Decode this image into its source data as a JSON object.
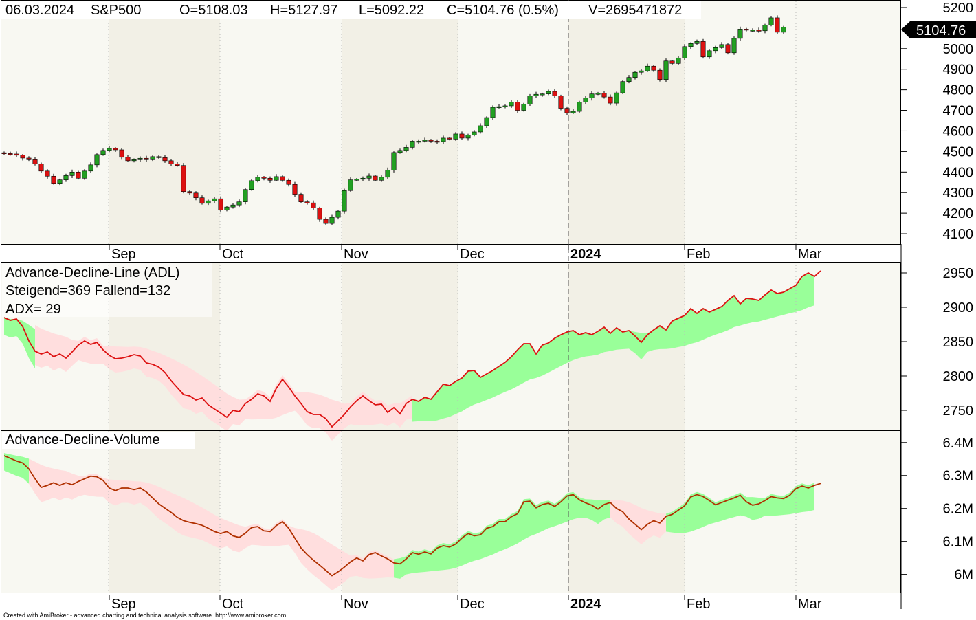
{
  "header": {
    "date": "06.03.2024",
    "symbol": "S&P500",
    "open": "O=5108.03",
    "high": "H=5127.97",
    "low": "L=5092.22",
    "close": "C=5104.76 (0.5%)",
    "volume": "V=2695471872"
  },
  "price_badge": "5104.76",
  "footer": "Created with AmiBroker - advanced charting and technical analysis software. http://www.amibroker.com",
  "months": [
    "Sep",
    "Oct",
    "Nov",
    "Dec",
    "2024",
    "Feb",
    "Mar"
  ],
  "panels": {
    "adl": {
      "title": "Advance-Decline-Line (ADL)",
      "line2": "Steigend=369  Fallend=132",
      "line3": "ADX= 29"
    },
    "adv": {
      "title": "Advance-Decline-Volume"
    }
  },
  "colors": {
    "up": "#22a022",
    "down": "#dd1111",
    "adl_line": "#dd1111",
    "adv_line": "#b03000",
    "cloud_up": "#99ff99",
    "cloud_down": "#ffdede",
    "shade_a": "#f2f0e6",
    "shade_b": "#f8f8f2"
  },
  "chart_data": [
    {
      "type": "candlestick",
      "series_name": "S&P500",
      "ylim": [
        4050,
        5230
      ],
      "yticks": [
        4100,
        4200,
        4300,
        4400,
        4500,
        4600,
        4700,
        4800,
        4900,
        5000,
        5100,
        5200
      ],
      "last_close": 5104.76,
      "close": [
        4490,
        4488,
        4482,
        4468,
        4460,
        4440,
        4405,
        4380,
        4345,
        4362,
        4383,
        4400,
        4370,
        4405,
        4435,
        4485,
        4505,
        4515,
        4508,
        4472,
        4455,
        4460,
        4467,
        4460,
        4475,
        4470,
        4455,
        4440,
        4432,
        4305,
        4298,
        4275,
        4248,
        4260,
        4270,
        4215,
        4230,
        4240,
        4255,
        4315,
        4358,
        4375,
        4370,
        4360,
        4378,
        4360,
        4340,
        4292,
        4255,
        4250,
        4225,
        4170,
        4150,
        4180,
        4210,
        4310,
        4362,
        4365,
        4370,
        4381,
        4360,
        4375,
        4410,
        4495,
        4505,
        4520,
        4550,
        4550,
        4555,
        4550,
        4548,
        4565,
        4560,
        4585,
        4565,
        4580,
        4595,
        4625,
        4665,
        4715,
        4718,
        4722,
        4740,
        4700,
        4730,
        4770,
        4778,
        4780,
        4792,
        4770,
        4710,
        4688,
        4695,
        4740,
        4760,
        4780,
        4783,
        4765,
        4735,
        4785,
        4840,
        4860,
        4885,
        4892,
        4915,
        4895,
        4850,
        4940,
        4928,
        4955,
        5010,
        5025,
        5035,
        4960,
        4990,
        5005,
        5020,
        4980,
        5050,
        5095,
        5090,
        5090,
        5087,
        5115,
        5150,
        5080,
        5104.76
      ]
    },
    {
      "type": "line",
      "series_name": "Advance-Decline-Line (ADL)",
      "ylim": [
        2722,
        2965
      ],
      "yticks": [
        2750,
        2800,
        2850,
        2900,
        2950
      ],
      "values": [
        2885,
        2881,
        2883,
        2872,
        2851,
        2836,
        2832,
        2835,
        2828,
        2832,
        2826,
        2835,
        2845,
        2851,
        2846,
        2849,
        2838,
        2830,
        2825,
        2826,
        2828,
        2831,
        2829,
        2819,
        2817,
        2813,
        2805,
        2793,
        2783,
        2773,
        2771,
        2765,
        2768,
        2758,
        2752,
        2746,
        2740,
        2750,
        2748,
        2760,
        2766,
        2774,
        2771,
        2763,
        2782,
        2795,
        2784,
        2771,
        2760,
        2748,
        2744,
        2744,
        2738,
        2726,
        2735,
        2744,
        2755,
        2764,
        2771,
        2764,
        2758,
        2759,
        2747,
        2754,
        2745,
        2760,
        2766,
        2763,
        2769,
        2766,
        2777,
        2788,
        2786,
        2792,
        2797,
        2807,
        2808,
        2798,
        2803,
        2808,
        2814,
        2820,
        2828,
        2838,
        2847,
        2847,
        2832,
        2845,
        2848,
        2855,
        2860,
        2864,
        2866,
        2860,
        2863,
        2860,
        2865,
        2871,
        2862,
        2870,
        2864,
        2866,
        2858,
        2849,
        2860,
        2867,
        2873,
        2867,
        2880,
        2884,
        2888,
        2898,
        2891,
        2898,
        2893,
        2897,
        2901,
        2910,
        2917,
        2905,
        2913,
        2912,
        2910,
        2918,
        2925,
        2920,
        2922,
        2927,
        2932,
        2945,
        2950,
        2945,
        2953
      ]
    },
    {
      "type": "line",
      "series_name": "Advance-Decline-Volume",
      "ylim": [
        5945000,
        6435000
      ],
      "yticks": [
        6000000,
        6100000,
        6200000,
        6300000,
        6400000
      ],
      "ytick_labels": [
        "6M",
        "6.1M",
        "6.2M",
        "6.3M",
        "6.4M"
      ],
      "values": [
        6360000,
        6352000,
        6344000,
        6338000,
        6320000,
        6290000,
        6264000,
        6270000,
        6278000,
        6270000,
        6278000,
        6272000,
        6282000,
        6290000,
        6298000,
        6296000,
        6285000,
        6262000,
        6254000,
        6262000,
        6262000,
        6257000,
        6262000,
        6250000,
        6232000,
        6214000,
        6201000,
        6188000,
        6173000,
        6163000,
        6158000,
        6154000,
        6149000,
        6140000,
        6130000,
        6124000,
        6130000,
        6117000,
        6112000,
        6125000,
        6142000,
        6145000,
        6132000,
        6130000,
        6148000,
        6160000,
        6140000,
        6110000,
        6080000,
        6060000,
        6043000,
        6028000,
        6012000,
        5996000,
        6008000,
        6022000,
        6038000,
        6050000,
        6041000,
        6060000,
        6066000,
        6056000,
        6047000,
        6035000,
        6032000,
        6047000,
        6066000,
        6061000,
        6068000,
        6062000,
        6080000,
        6087000,
        6083000,
        6092000,
        6110000,
        6124000,
        6117000,
        6120000,
        6140000,
        6145000,
        6160000,
        6160000,
        6175000,
        6184000,
        6220000,
        6222000,
        6202000,
        6212000,
        6216000,
        6206000,
        6220000,
        6238000,
        6242000,
        6226000,
        6217000,
        6210000,
        6198000,
        6212000,
        6218000,
        6200000,
        6190000,
        6168000,
        6152000,
        6136000,
        6152000,
        6163000,
        6156000,
        6176000,
        6182000,
        6195000,
        6208000,
        6235000,
        6242000,
        6236000,
        6224000,
        6211000,
        6218000,
        6225000,
        6232000,
        6240000,
        6220000,
        6210000,
        6214000,
        6224000,
        6236000,
        6232000,
        6230000,
        6240000,
        6260000,
        6268000,
        6262000,
        6270000,
        6276000
      ]
    }
  ]
}
